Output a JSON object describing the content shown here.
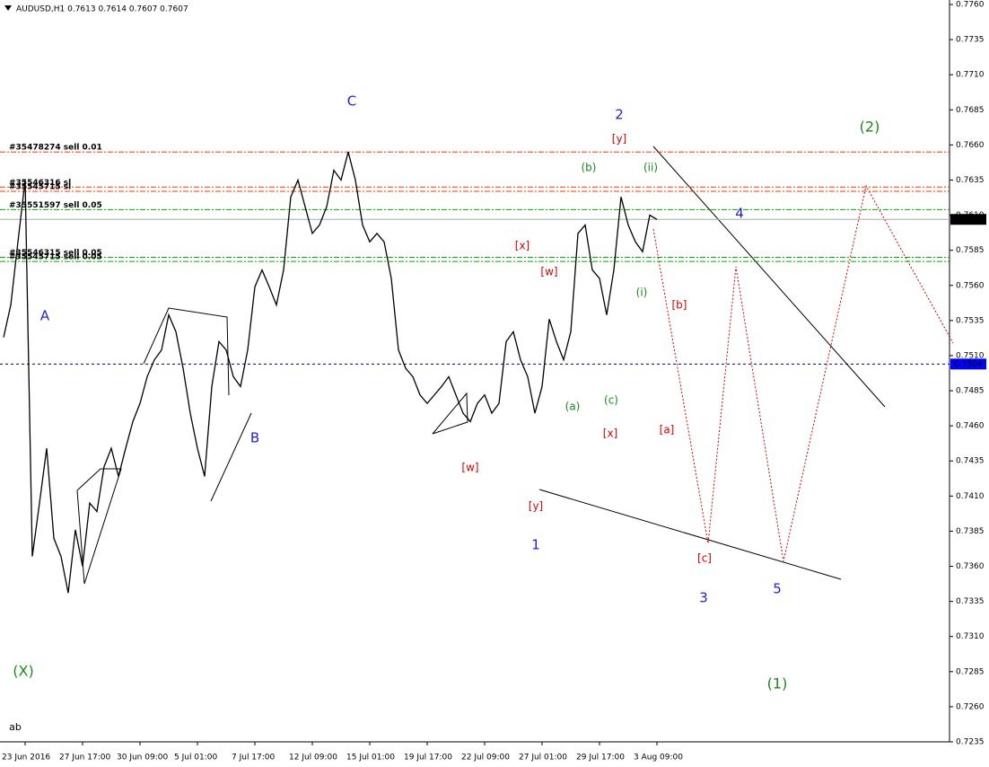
{
  "chart_data": {
    "type": "line",
    "title": "AUDUSD,H1  0.7613 0.7614 0.7607 0.7607",
    "categories": [
      null,
      null,
      null,
      "23 Jun 2016",
      null,
      null,
      null,
      null,
      null,
      null,
      null,
      "27 Jun 17:00",
      null,
      null,
      null,
      null,
      null,
      null,
      null,
      "30 Jun 09:00",
      null,
      null,
      null,
      null,
      null,
      null,
      null,
      "5 Jul 01:00",
      null,
      null,
      null,
      null,
      null,
      null,
      null,
      "7 Jul 17:00",
      null,
      null,
      null,
      null,
      null,
      null,
      null,
      "12 Jul 09:00",
      null,
      null,
      null,
      null,
      null,
      null,
      null,
      "15 Jul 01:00",
      null,
      null,
      null,
      null,
      null,
      null,
      null,
      "19 Jul 17:00",
      null,
      null,
      null,
      null,
      null,
      null,
      null,
      "22 Jul 09:00",
      null,
      null,
      null,
      null,
      null,
      null,
      null,
      "27 Jul 01:00",
      null,
      null,
      null,
      null,
      null,
      null,
      null,
      "29 Jul 17:00",
      null,
      null,
      null,
      null,
      null,
      null,
      null,
      "3 Aug 09:00"
    ],
    "series": [
      {
        "name": "AUDUSD,H1",
        "color": "#000000",
        "values": [
          0.7523,
          0.7546,
          0.7591,
          0.7635,
          0.7367,
          0.7405,
          0.7444,
          0.738,
          0.7367,
          0.7341,
          0.7386,
          0.736,
          0.7405,
          0.7399,
          0.7431,
          0.7444,
          0.7424,
          0.7444,
          0.7463,
          0.7476,
          0.7495,
          0.7507,
          0.7514,
          0.7539,
          0.7527,
          0.7501,
          0.7469,
          0.7444,
          0.7424,
          0.7488,
          0.752,
          0.7514,
          0.7495,
          0.7488,
          0.7514,
          0.7559,
          0.7571,
          0.7559,
          0.7546,
          0.7571,
          0.7623,
          0.7635,
          0.7616,
          0.7597,
          0.7603,
          0.7616,
          0.7642,
          0.7635,
          0.7655,
          0.7635,
          0.7603,
          0.7591,
          0.7597,
          0.7591,
          0.7565,
          0.7514,
          0.7501,
          0.7495,
          0.7482,
          0.7476,
          0.7482,
          0.7488,
          0.7495,
          0.7482,
          0.7469,
          0.7463,
          0.7476,
          0.7482,
          0.7469,
          0.7476,
          0.752,
          0.7527,
          0.7507,
          0.7495,
          0.7469,
          0.7488,
          0.7536,
          0.752,
          0.7507,
          0.7527,
          0.7597,
          0.7603,
          0.7571,
          0.7565,
          0.7539,
          0.7571,
          0.7623,
          0.7603,
          0.7591,
          0.7584,
          0.761,
          0.7607
        ]
      }
    ],
    "ylim": [
      0.7235,
      0.776
    ],
    "yticks": [
      {
        "value": 0.776,
        "label": "0.7760"
      },
      0.7735,
      {
        "value": 0.771,
        "label": "0.7710"
      },
      0.7685,
      {
        "value": 0.766,
        "label": "0.7660"
      },
      0.7635,
      {
        "value": 0.761,
        "label": "0.7610"
      },
      0.7585,
      {
        "value": 0.756,
        "label": "0.7560"
      },
      0.7535,
      {
        "value": 0.751,
        "label": "0.7510"
      },
      0.7485,
      {
        "value": 0.746,
        "label": "0.7460"
      },
      0.7435,
      {
        "value": 0.741,
        "label": "0.7410"
      },
      0.7385,
      {
        "value": 0.736,
        "label": "0.7360"
      },
      0.7335,
      {
        "value": 0.731,
        "label": "0.7310"
      },
      0.7285,
      {
        "value": 0.726,
        "label": "0.7260"
      },
      0.7235
    ],
    "levels": [
      {
        "value": 0.7655,
        "color": "#ff3300",
        "text": "#35478274 sell 0.01"
      },
      {
        "value": 0.763,
        "color": "#ff3300",
        "text": "#35546316 sl"
      },
      {
        "value": 0.7627,
        "color": "#ff3300",
        "text": "#35545715 sl"
      },
      {
        "value": 0.7614,
        "color": "#00aa00",
        "text": "#35551597 sell 0.05"
      },
      {
        "value": 0.758,
        "color": "#00aa00",
        "text": "#35546315 sell 0.05"
      },
      {
        "value": 0.7577,
        "color": "#00aa00",
        "text": "#35545715 sell 0.05"
      }
    ],
    "current_price": 0.7607,
    "alert_price": 0.7504,
    "annotations": [
      {
        "text": "A",
        "color": "#2020e0"
      },
      {
        "text": "B",
        "color": "#2020e0"
      },
      {
        "text": "C",
        "color": "#2020e0"
      },
      {
        "text": "1",
        "color": "#2020e0"
      },
      {
        "text": "2",
        "color": "#2020e0"
      },
      {
        "text": "3",
        "color": "#2020e0"
      },
      {
        "text": "4",
        "color": "#2020e0"
      },
      {
        "text": "5",
        "color": "#2020e0"
      },
      {
        "text": "(X)",
        "color": "#1a8a1a"
      },
      {
        "text": "(1)",
        "color": "#1a8a1a"
      },
      {
        "text": "(2)",
        "color": "#1a8a1a"
      },
      {
        "text": "(a)",
        "color": "#1a8a1a"
      },
      {
        "text": "(b)",
        "color": "#1a8a1a"
      },
      {
        "text": "(c)",
        "color": "#1a8a1a"
      },
      {
        "text": "(i)",
        "color": "#1a8a1a"
      },
      {
        "text": "(ii)",
        "color": "#1a8a1a"
      },
      {
        "text": "[x]",
        "color": "#e00000"
      },
      {
        "text": "[w]",
        "color": "#e00000"
      },
      {
        "text": "[w]",
        "color": "#e00000"
      },
      {
        "text": "[y]",
        "color": "#e00000"
      },
      {
        "text": "[x]",
        "color": "#e00000"
      },
      {
        "text": "[y]",
        "color": "#e00000"
      },
      {
        "text": "[a]",
        "color": "#e00000"
      },
      {
        "text": "[b]",
        "color": "#e00000"
      },
      {
        "text": "[c]",
        "color": "#e00000"
      },
      {
        "text": "ab",
        "color": "#000000"
      }
    ]
  }
}
